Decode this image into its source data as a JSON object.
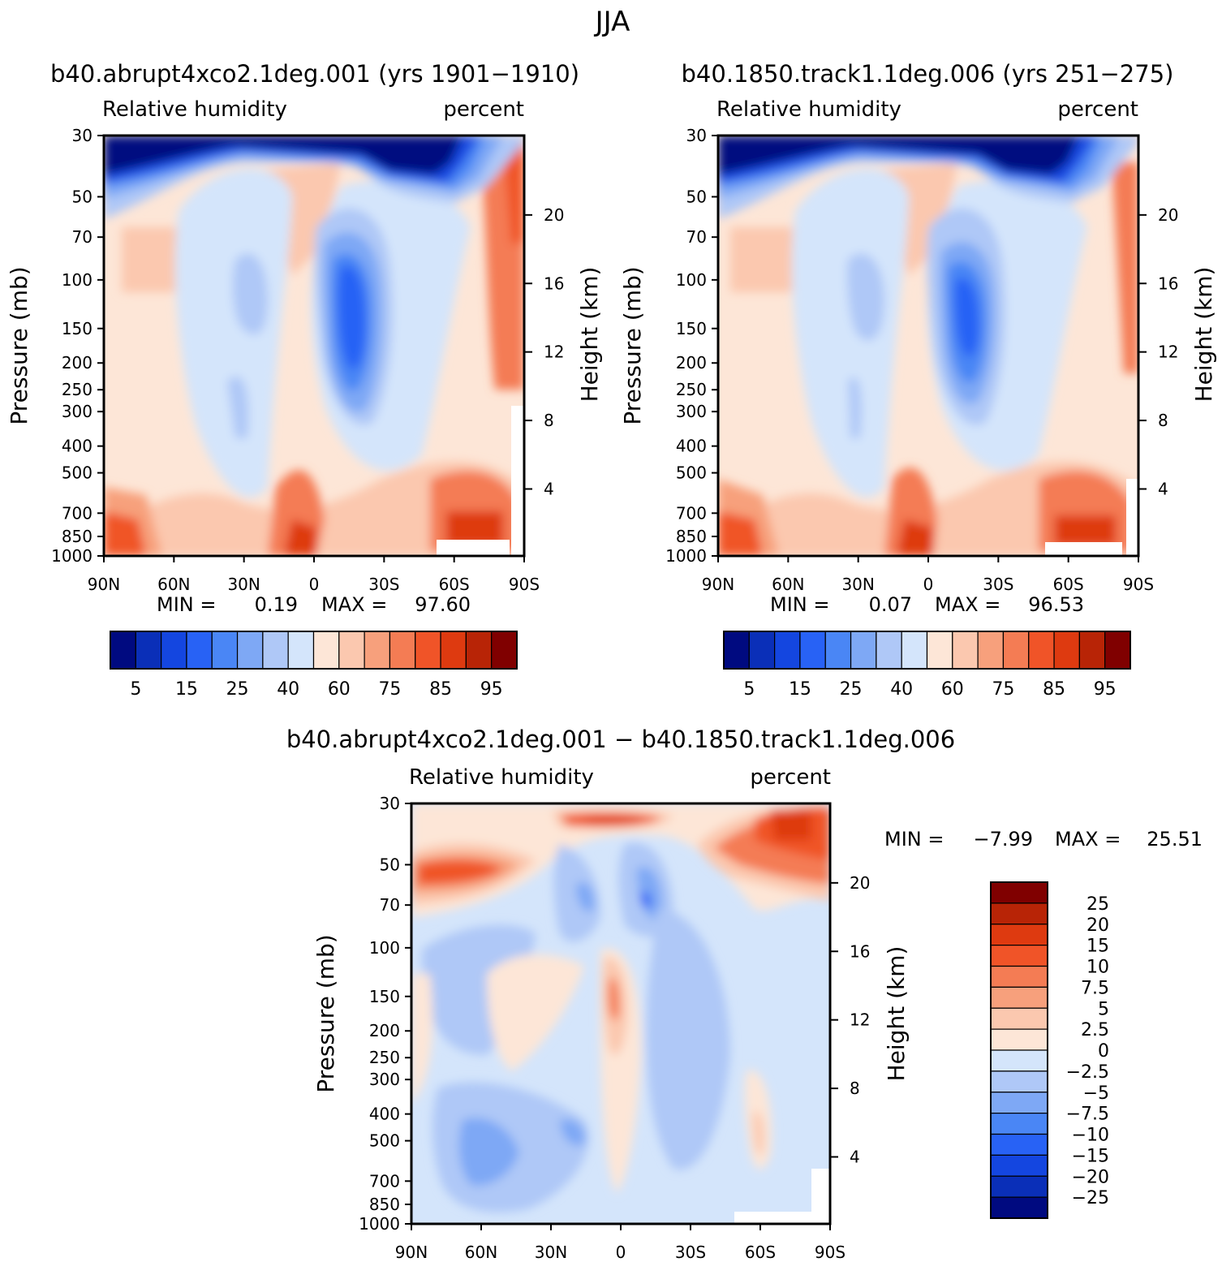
{
  "figure_title": "JJA",
  "colors": {
    "rh_levels": [
      "#000a80",
      "#0a2fb8",
      "#1446e0",
      "#2862f5",
      "#4a86f5",
      "#7ea8f5",
      "#afc8f7",
      "#d4e5fb",
      "#fde6d7",
      "#fbc8af",
      "#f7a07c",
      "#f47c54",
      "#f05428",
      "#de3a10",
      "#b82406",
      "#800000"
    ],
    "diff_levels": [
      "#000a80",
      "#0a2fb8",
      "#1446e0",
      "#2862f5",
      "#4a86f5",
      "#7ea8f5",
      "#afc8f7",
      "#d4e5fb",
      "#fde6d7",
      "#fbc8af",
      "#f7a07c",
      "#f47c54",
      "#f05428",
      "#de3a10",
      "#b82406",
      "#800000"
    ]
  },
  "chart_data": [
    {
      "type": "heatmap",
      "title": "b40.abrupt4xco2.1deg.001 (yrs 1901−1910)",
      "left_label": "Relative humidity",
      "right_label": "percent",
      "ylabel": "Pressure (mb)",
      "y2label": "Height (km)",
      "x_ticks": [
        "90N",
        "60N",
        "30N",
        "0",
        "30S",
        "60S",
        "90S"
      ],
      "y_ticks": [
        "30",
        "50",
        "70",
        "100",
        "150",
        "200",
        "250",
        "300",
        "400",
        "500",
        "700",
        "850",
        "1000"
      ],
      "y2_ticks": [
        "20",
        "16",
        "12",
        "8",
        "4"
      ],
      "min_label": "MIN =",
      "min_value": "0.19",
      "max_label": "MAX =",
      "max_value": "97.60",
      "colorbar_labels": [
        "5",
        "15",
        "25",
        "40",
        "60",
        "75",
        "85",
        "95"
      ]
    },
    {
      "type": "heatmap",
      "title": "b40.1850.track1.1deg.006 (yrs 251−275)",
      "left_label": "Relative humidity",
      "right_label": "percent",
      "ylabel": "Pressure (mb)",
      "y2label": "Height (km)",
      "x_ticks": [
        "90N",
        "60N",
        "30N",
        "0",
        "30S",
        "60S",
        "90S"
      ],
      "y_ticks": [
        "30",
        "50",
        "70",
        "100",
        "150",
        "200",
        "250",
        "300",
        "400",
        "500",
        "700",
        "850",
        "1000"
      ],
      "y2_ticks": [
        "20",
        "16",
        "12",
        "8",
        "4"
      ],
      "min_label": "MIN =",
      "min_value": "0.07",
      "max_label": "MAX =",
      "max_value": "96.53",
      "colorbar_labels": [
        "5",
        "15",
        "25",
        "40",
        "60",
        "75",
        "85",
        "95"
      ]
    },
    {
      "type": "heatmap",
      "title": "b40.abrupt4xco2.1deg.001 − b40.1850.track1.1deg.006",
      "left_label": "Relative humidity",
      "right_label": "percent",
      "ylabel": "Pressure (mb)",
      "y2label": "Height (km)",
      "x_ticks": [
        "90N",
        "60N",
        "30N",
        "0",
        "30S",
        "60S",
        "90S"
      ],
      "y_ticks": [
        "30",
        "50",
        "70",
        "100",
        "150",
        "200",
        "250",
        "300",
        "400",
        "500",
        "700",
        "850",
        "1000"
      ],
      "y2_ticks": [
        "20",
        "16",
        "12",
        "8",
        "4"
      ],
      "min_label": "MIN =",
      "min_value": "−7.99",
      "max_label": "MAX =",
      "max_value": "25.51",
      "colorbar_labels": [
        "25",
        "20",
        "15",
        "10",
        "7.5",
        "5",
        "2.5",
        "0",
        "−2.5",
        "−5",
        "−7.5",
        "−10",
        "−15",
        "−20",
        "−25"
      ]
    }
  ]
}
